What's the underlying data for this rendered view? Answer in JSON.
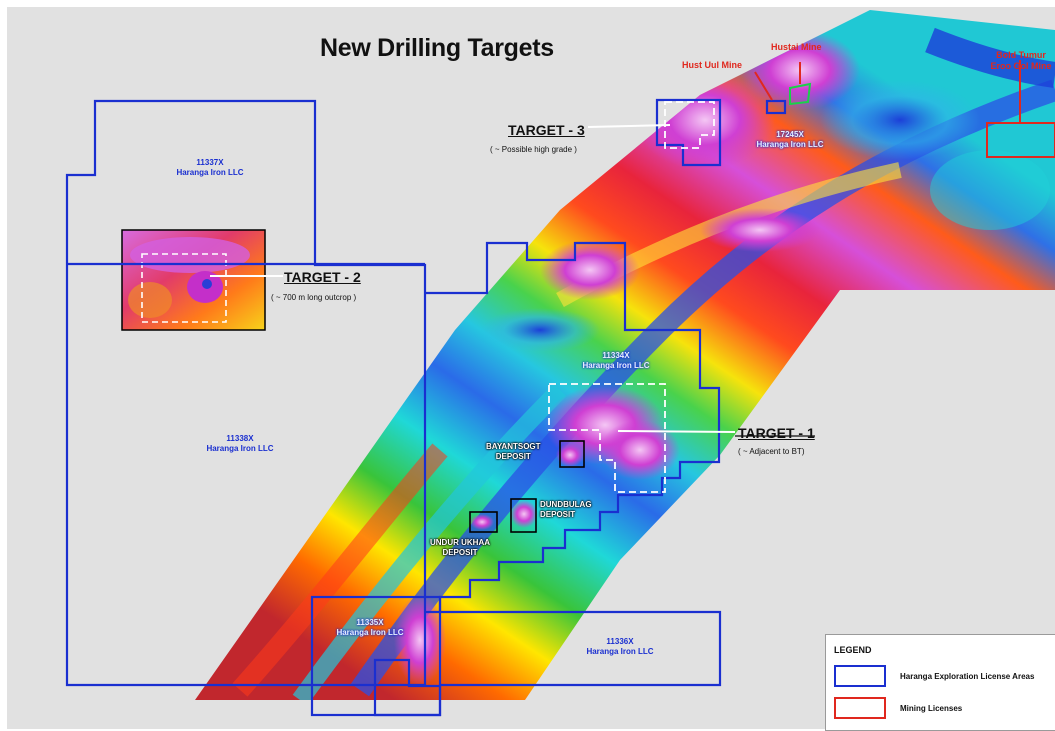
{
  "title": "New Drilling Targets",
  "licenses": [
    {
      "id": "11337X",
      "owner": "Haranga Iron LLC"
    },
    {
      "id": "11338X",
      "owner": "Haranga Iron LLC"
    },
    {
      "id": "11334X",
      "owner": "Haranga Iron LLC"
    },
    {
      "id": "17245X",
      "owner": "Haranga Iron LLC"
    },
    {
      "id": "11335X",
      "owner": "Haranga Iron LLC"
    },
    {
      "id": "11336X",
      "owner": "Haranga Iron LLC"
    }
  ],
  "targets": [
    {
      "label": "TARGET - 1",
      "note": "( ~ Adjacent to BT)"
    },
    {
      "label": "TARGET - 2",
      "note": "( ~ 700 m long outcrop )"
    },
    {
      "label": "TARGET - 3",
      "note": "( ~ Possible high grade )"
    }
  ],
  "mines": [
    {
      "name": "Hust Uul Mine"
    },
    {
      "name": "Hustai Mine"
    },
    {
      "name": "Bold Tumur\nEroo Gol Mine"
    }
  ],
  "deposits": [
    {
      "name": "BAYANTSOGT\nDEPOSIT"
    },
    {
      "name": "DUNDBULAG\nDEPOSIT"
    },
    {
      "name": "UNDUR UKHAA\nDEPOSIT"
    }
  ],
  "legend": {
    "title": "LEGEND",
    "items": [
      {
        "label": "Haranga Exploration License Areas",
        "color": "#1a2fd0"
      },
      {
        "label": "Mining Licenses",
        "color": "#e0281e"
      }
    ]
  },
  "colors": {
    "background": "#e1e1e1",
    "license_boundary": "#1a2fd0",
    "mining_license": "#e0281e",
    "target_outline": "#ffffff"
  }
}
